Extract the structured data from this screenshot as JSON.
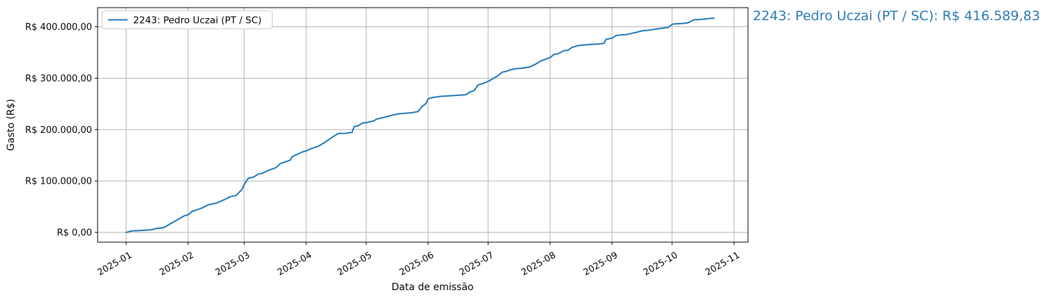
{
  "colors": {
    "line": "#1f77b4",
    "annotation": "#2878b5",
    "grid": "#b2b2b2",
    "spine": "#000000",
    "tick_text": "#000000",
    "legend_border": "#cccccc",
    "legend_bg": "#ffffff",
    "background": "#ffffff"
  },
  "annotation": {
    "text": "2243: Pedro Uczai (PT / SC): R$ 416.589,83"
  },
  "chart_data": {
    "type": "line",
    "title": "",
    "xlabel": "Data de emissão",
    "ylabel": "Gasto (R$)",
    "grid": true,
    "legend": {
      "position": "upper left",
      "entries": [
        "2243: Pedro Uczai (PT / SC)"
      ]
    },
    "x_domain": [
      "2024-12-18",
      "2025-11-08"
    ],
    "y_domain": [
      -19000,
      437000
    ],
    "x_ticks": [
      {
        "label": "2025-01",
        "date": "2025-01-01"
      },
      {
        "label": "2025-02",
        "date": "2025-02-01"
      },
      {
        "label": "2025-03",
        "date": "2025-03-01"
      },
      {
        "label": "2025-04",
        "date": "2025-04-01"
      },
      {
        "label": "2025-05",
        "date": "2025-05-01"
      },
      {
        "label": "2025-06",
        "date": "2025-06-01"
      },
      {
        "label": "2025-07",
        "date": "2025-07-01"
      },
      {
        "label": "2025-08",
        "date": "2025-08-01"
      },
      {
        "label": "2025-09",
        "date": "2025-09-01"
      },
      {
        "label": "2025-10",
        "date": "2025-10-01"
      },
      {
        "label": "2025-11",
        "date": "2025-11-01"
      }
    ],
    "y_ticks": [
      {
        "label": "R$ 0,00",
        "value": 0
      },
      {
        "label": "R$ 100.000,00",
        "value": 100000
      },
      {
        "label": "R$ 200.000,00",
        "value": 200000
      },
      {
        "label": "R$ 300.000,00",
        "value": 300000
      },
      {
        "label": "R$ 400.000,00",
        "value": 400000
      }
    ],
    "series": [
      {
        "name": "2243: Pedro Uczai (PT / SC)",
        "color": "#1f77b4",
        "final_value": 416589.83,
        "final_value_label": "R$ 416.589,83",
        "points": [
          [
            "2025-01-01",
            0
          ],
          [
            "2025-01-04",
            3100
          ],
          [
            "2025-01-08",
            3600
          ],
          [
            "2025-01-11",
            4400
          ],
          [
            "2025-01-14",
            5400
          ],
          [
            "2025-01-16",
            7600
          ],
          [
            "2025-01-18",
            8500
          ],
          [
            "2025-01-20",
            9800
          ],
          [
            "2025-01-22",
            14300
          ],
          [
            "2025-01-23",
            16500
          ],
          [
            "2025-01-25",
            21000
          ],
          [
            "2025-01-27",
            25500
          ],
          [
            "2025-01-28",
            27700
          ],
          [
            "2025-01-30",
            32200
          ],
          [
            "2025-02-01",
            34400
          ],
          [
            "2025-02-03",
            41100
          ],
          [
            "2025-02-05",
            43300
          ],
          [
            "2025-02-08",
            47700
          ],
          [
            "2025-02-11",
            53600
          ],
          [
            "2025-02-15",
            56800
          ],
          [
            "2025-02-18",
            61700
          ],
          [
            "2025-02-22",
            69300
          ],
          [
            "2025-02-25",
            72000
          ],
          [
            "2025-02-28",
            84000
          ],
          [
            "2025-03-01",
            93000
          ],
          [
            "2025-03-03",
            105000
          ],
          [
            "2025-03-06",
            108100
          ],
          [
            "2025-03-08",
            113500
          ],
          [
            "2025-03-10",
            114900
          ],
          [
            "2025-03-13",
            120300
          ],
          [
            "2025-03-17",
            126100
          ],
          [
            "2025-03-19",
            133800
          ],
          [
            "2025-03-20",
            135100
          ],
          [
            "2025-03-24",
            140500
          ],
          [
            "2025-03-25",
            147300
          ],
          [
            "2025-03-27",
            150900
          ],
          [
            "2025-03-30",
            156300
          ],
          [
            "2025-04-01",
            158500
          ],
          [
            "2025-04-03",
            162200
          ],
          [
            "2025-04-07",
            167600
          ],
          [
            "2025-04-10",
            174300
          ],
          [
            "2025-04-14",
            185000
          ],
          [
            "2025-04-17",
            192300
          ],
          [
            "2025-04-21",
            192800
          ],
          [
            "2025-04-24",
            194600
          ],
          [
            "2025-04-25",
            205900
          ],
          [
            "2025-04-27",
            207200
          ],
          [
            "2025-04-29",
            212600
          ],
          [
            "2025-05-01",
            213500
          ],
          [
            "2025-05-05",
            217100
          ],
          [
            "2025-05-06",
            220300
          ],
          [
            "2025-05-10",
            223900
          ],
          [
            "2025-05-13",
            227000
          ],
          [
            "2025-05-17",
            230700
          ],
          [
            "2025-05-20",
            231500
          ],
          [
            "2025-05-24",
            232900
          ],
          [
            "2025-05-27",
            235100
          ],
          [
            "2025-05-29",
            245000
          ],
          [
            "2025-05-31",
            251000
          ],
          [
            "2025-06-01",
            259900
          ],
          [
            "2025-06-03",
            262200
          ],
          [
            "2025-06-07",
            264500
          ],
          [
            "2025-06-10",
            265300
          ],
          [
            "2025-06-14",
            266200
          ],
          [
            "2025-06-17",
            267100
          ],
          [
            "2025-06-20",
            268000
          ],
          [
            "2025-06-22",
            273400
          ],
          [
            "2025-06-24",
            275700
          ],
          [
            "2025-06-26",
            286900
          ],
          [
            "2025-06-28",
            289200
          ],
          [
            "2025-06-29",
            290500
          ],
          [
            "2025-07-01",
            293700
          ],
          [
            "2025-07-03",
            298200
          ],
          [
            "2025-07-05",
            302700
          ],
          [
            "2025-07-06",
            305000
          ],
          [
            "2025-07-08",
            311700
          ],
          [
            "2025-07-10",
            313100
          ],
          [
            "2025-07-12",
            316200
          ],
          [
            "2025-07-15",
            318500
          ],
          [
            "2025-07-18",
            319400
          ],
          [
            "2025-07-22",
            322000
          ],
          [
            "2025-07-24",
            326000
          ],
          [
            "2025-07-26",
            330000
          ],
          [
            "2025-07-27",
            333000
          ],
          [
            "2025-07-29",
            336000
          ],
          [
            "2025-08-01",
            340100
          ],
          [
            "2025-08-03",
            346400
          ],
          [
            "2025-08-05",
            347700
          ],
          [
            "2025-08-08",
            353600
          ],
          [
            "2025-08-10",
            354500
          ],
          [
            "2025-08-12",
            359900
          ],
          [
            "2025-08-15",
            363500
          ],
          [
            "2025-08-19",
            364900
          ],
          [
            "2025-08-22",
            365800
          ],
          [
            "2025-08-26",
            366700
          ],
          [
            "2025-08-28",
            368000
          ],
          [
            "2025-08-29",
            375700
          ],
          [
            "2025-09-01",
            378000
          ],
          [
            "2025-09-03",
            382900
          ],
          [
            "2025-09-04",
            383800
          ],
          [
            "2025-09-08",
            384700
          ],
          [
            "2025-09-11",
            387400
          ],
          [
            "2025-09-13",
            389000
          ],
          [
            "2025-09-16",
            392200
          ],
          [
            "2025-09-20",
            393600
          ],
          [
            "2025-09-23",
            395700
          ],
          [
            "2025-09-25",
            396600
          ],
          [
            "2025-09-27",
            397600
          ],
          [
            "2025-09-29",
            398900
          ],
          [
            "2025-10-01",
            404700
          ],
          [
            "2025-10-02",
            405600
          ],
          [
            "2025-10-06",
            406400
          ],
          [
            "2025-10-09",
            407800
          ],
          [
            "2025-10-12",
            413700
          ],
          [
            "2025-10-16",
            414500
          ],
          [
            "2025-10-18",
            415400
          ],
          [
            "2025-10-21",
            416500
          ],
          [
            "2025-10-22",
            416589.83
          ]
        ]
      }
    ]
  }
}
